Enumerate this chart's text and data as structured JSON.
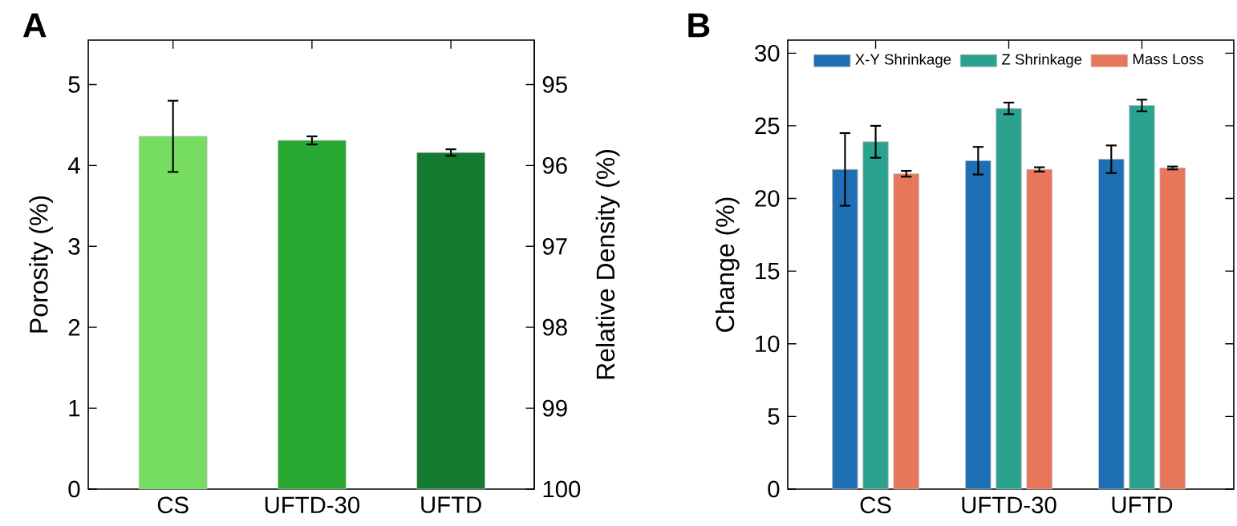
{
  "chart_data": [
    {
      "type": "bar",
      "title": "A",
      "categories": [
        "CS",
        "UFTD-30",
        "UFTD"
      ],
      "values": [
        4.36,
        4.31,
        4.16
      ],
      "errors": [
        0.44,
        0.05,
        0.04
      ],
      "colors": [
        "#76dd62",
        "#2aa834",
        "#137a30"
      ],
      "ylabel": "Porosity (%)",
      "y2label": "Relative Density (%)",
      "ylim": [
        0,
        5.55
      ],
      "yticks": [
        0,
        1,
        2,
        3,
        4,
        5
      ],
      "y2lim": [
        100,
        94.45
      ],
      "y2ticks": [
        100,
        99,
        98,
        97,
        96,
        95
      ]
    },
    {
      "type": "bar",
      "title": "B",
      "categories": [
        "CS",
        "UFTD-30",
        "UFTD"
      ],
      "ylabel": "Change (%)",
      "ylim": [
        0,
        30.9
      ],
      "yticks": [
        0,
        5,
        10,
        15,
        20,
        25,
        30
      ],
      "legend": "top",
      "series": [
        {
          "name": "X-Y Shrinkage",
          "color": "#1f6fb4",
          "values": [
            22.0,
            22.6,
            22.7
          ],
          "errors": [
            2.5,
            0.95,
            0.95
          ]
        },
        {
          "name": "Z Shrinkage",
          "color": "#2ba28e",
          "values": [
            23.9,
            26.2,
            26.4
          ],
          "errors": [
            1.1,
            0.4,
            0.4
          ]
        },
        {
          "name": "Mass Loss",
          "color": "#e8765a",
          "values": [
            21.7,
            22.0,
            22.1
          ],
          "errors": [
            0.2,
            0.15,
            0.1
          ]
        }
      ]
    }
  ]
}
